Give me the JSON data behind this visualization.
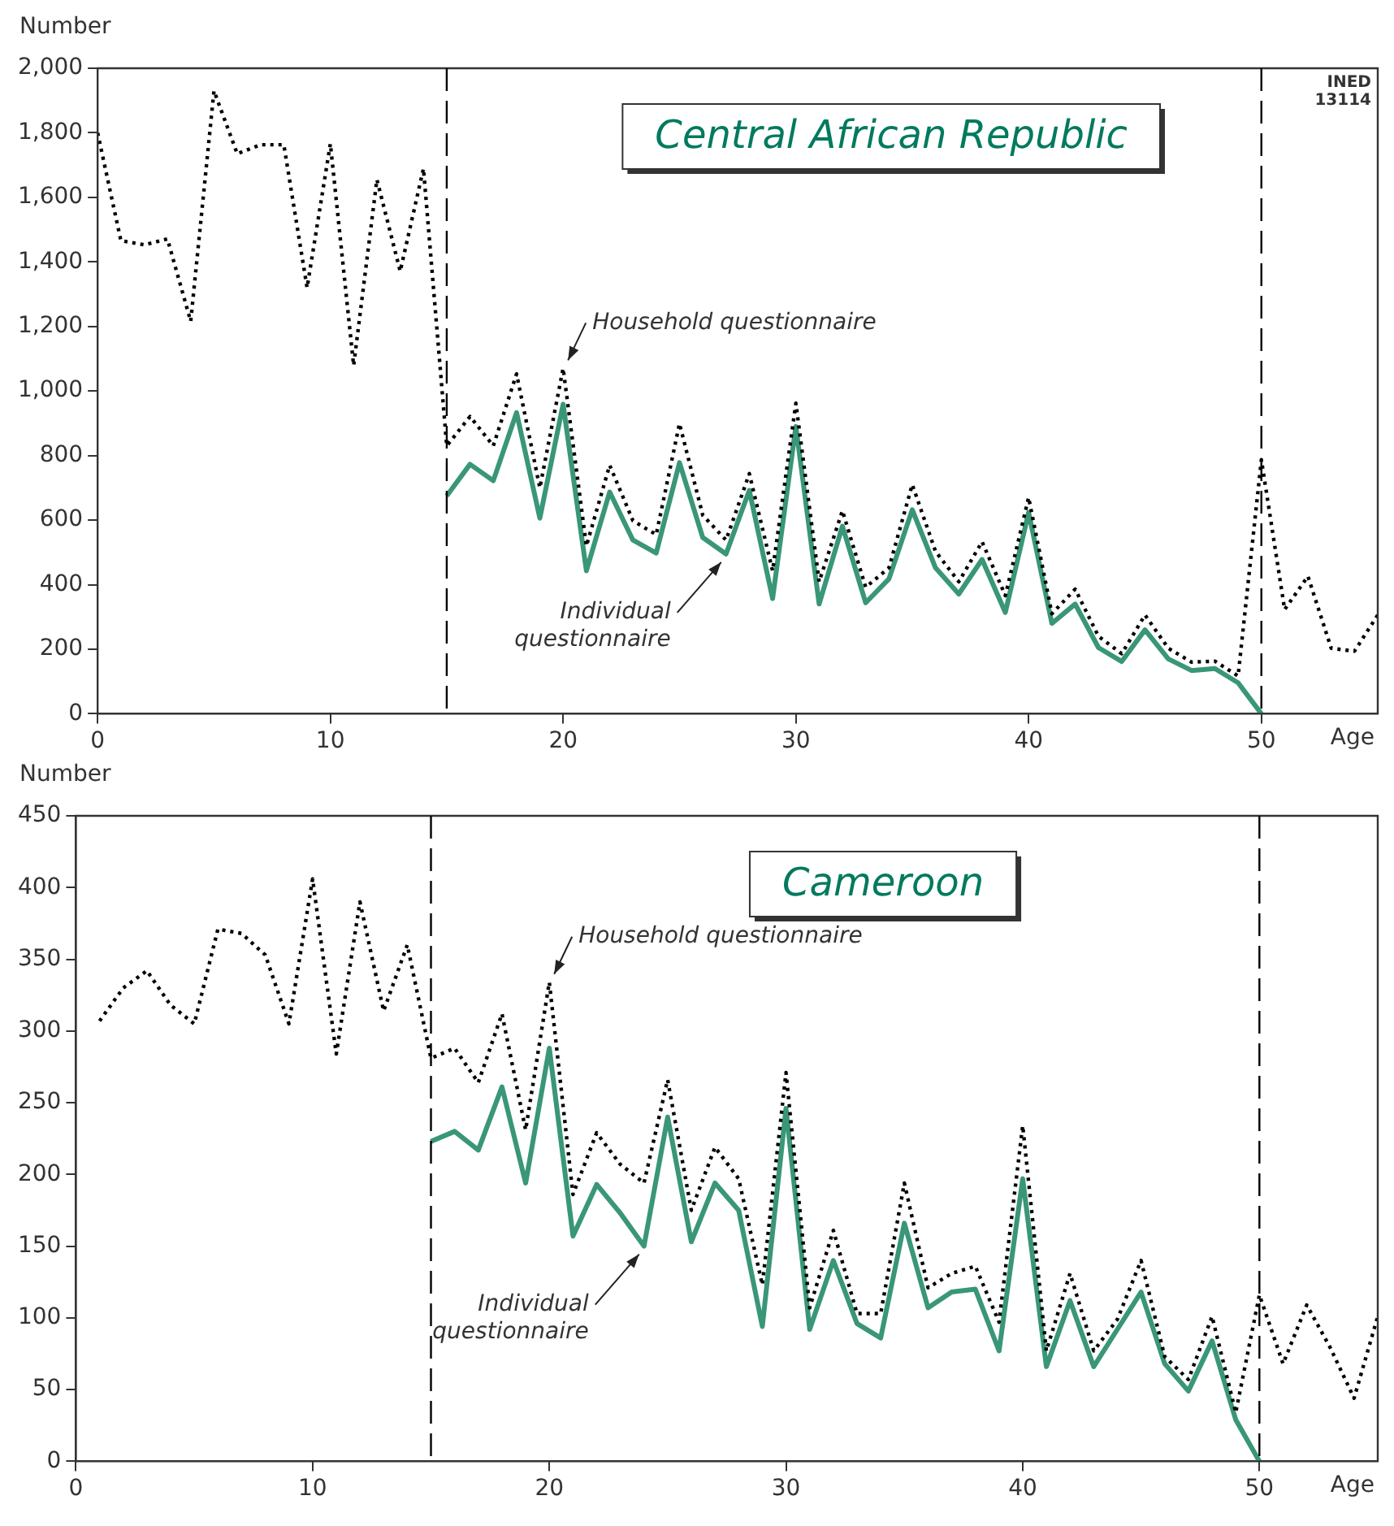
{
  "chart_data": [
    {
      "type": "line",
      "title": "Central African Republic",
      "xlabel": "Age",
      "ylabel": "Number",
      "xlim": [
        0,
        55
      ],
      "xticks": [
        0,
        10,
        20,
        30,
        40,
        50
      ],
      "ylim": [
        0,
        2000
      ],
      "yticks": [
        0,
        200,
        400,
        600,
        800,
        {
          "value": 1000,
          "label": "1,000"
        },
        {
          "value": 1200,
          "label": "1,200"
        },
        {
          "value": 1400,
          "label": "1,400"
        },
        {
          "value": 1600,
          "label": "1,600"
        },
        {
          "value": 1800,
          "label": "1,800"
        },
        {
          "value": 2000,
          "label": "2,000"
        }
      ],
      "grid": false,
      "legend": false,
      "marker": "none",
      "series": [
        {
          "color": "#000000",
          "line_style": "dotted",
          "x": [
            0,
            1,
            2,
            3,
            4,
            5,
            6,
            7,
            8,
            9,
            10,
            11,
            12,
            13,
            14,
            15,
            16,
            17,
            18,
            19,
            20,
            21,
            22,
            23,
            24,
            25,
            26,
            27,
            28,
            29,
            30,
            31,
            32,
            33,
            34,
            35,
            36,
            37,
            38,
            39,
            40,
            41,
            42,
            43,
            44,
            45,
            46,
            47,
            48,
            49,
            50,
            51,
            52,
            53,
            54,
            55
          ],
          "values": [
            1800,
            1466,
            1453,
            1471,
            1216,
            1930,
            1735,
            1763,
            1763,
            1320,
            1766,
            1079,
            1655,
            1371,
            1689,
            830,
            921,
            830,
            1053,
            700,
            1070,
            520,
            770,
            598,
            555,
            899,
            615,
            538,
            744,
            443,
            962,
            409,
            629,
            392,
            452,
            710,
            503,
            409,
            533,
            366,
            670,
            310,
            386,
            240,
            186,
            306,
            203,
            160,
            163,
            117,
            787,
            323,
            426,
            203,
            194,
            306
          ]
        },
        {
          "color": "#3a9679",
          "line_style": "solid",
          "x": [
            15,
            16,
            17,
            18,
            19,
            20,
            21,
            22,
            23,
            24,
            25,
            26,
            27,
            28,
            29,
            30,
            31,
            32,
            33,
            34,
            35,
            36,
            37,
            38,
            39,
            40,
            41,
            42,
            43,
            44,
            45,
            46,
            47,
            48,
            49,
            50
          ],
          "values": [
            675,
            773,
            722,
            933,
            606,
            959,
            443,
            687,
            538,
            498,
            778,
            546,
            495,
            692,
            357,
            890,
            340,
            581,
            344,
            418,
            632,
            452,
            371,
            478,
            314,
            624,
            280,
            340,
            205,
            162,
            260,
            170,
            134,
            140,
            96,
            0
          ]
        }
      ],
      "ref_lines": [
        {
          "axis": "x",
          "value": 15,
          "line_style": "dashed",
          "color": "#000000"
        },
        {
          "axis": "x",
          "value": 50,
          "line_style": "dashed",
          "color": "#000000"
        }
      ],
      "annotations": [
        {
          "text": "Household questionnaire",
          "x": 20,
          "y": 1070
        },
        {
          "text": "Individual questionnaire",
          "x": 27,
          "y": 495
        },
        "INED 13114"
      ]
    },
    {
      "type": "line",
      "title": "Cameroon",
      "xlabel": "Age",
      "ylabel": "Number",
      "xlim": [
        0,
        55
      ],
      "xticks": [
        0,
        10,
        20,
        30,
        40,
        50
      ],
      "ylim": [
        0,
        450
      ],
      "yticks": [
        0,
        50,
        100,
        150,
        200,
        250,
        300,
        350,
        400,
        450
      ],
      "grid": false,
      "legend": false,
      "marker": "none",
      "series": [
        {
          "color": "#000000",
          "line_style": "dotted",
          "x": [
            1,
            2,
            3,
            4,
            5,
            6,
            7,
            8,
            9,
            10,
            11,
            12,
            13,
            14,
            15,
            16,
            17,
            18,
            19,
            20,
            21,
            22,
            23,
            24,
            25,
            26,
            27,
            28,
            29,
            30,
            31,
            32,
            33,
            34,
            35,
            36,
            37,
            38,
            39,
            40,
            41,
            42,
            43,
            44,
            45,
            46,
            47,
            48,
            49,
            50,
            51,
            52,
            53,
            54,
            55
          ],
          "values": [
            307,
            330,
            342,
            318,
            305,
            371,
            368,
            353,
            305,
            406,
            284,
            390,
            314,
            360,
            281,
            288,
            264,
            312,
            231,
            334,
            186,
            229,
            207,
            194,
            266,
            175,
            219,
            197,
            123,
            271,
            107,
            161,
            103,
            103,
            194,
            121,
            131,
            136,
            97,
            234,
            77,
            131,
            77,
            99,
            140,
            73,
            57,
            101,
            34,
            116,
            68,
            109,
            79,
            44,
            101
          ]
        },
        {
          "color": "#3a9679",
          "line_style": "solid",
          "x": [
            15,
            16,
            17,
            18,
            19,
            20,
            21,
            22,
            23,
            24,
            25,
            26,
            27,
            28,
            29,
            30,
            31,
            32,
            33,
            34,
            35,
            36,
            37,
            38,
            39,
            40,
            41,
            42,
            43,
            44,
            45,
            46,
            47,
            48,
            49,
            50
          ],
          "values": [
            223,
            230,
            217,
            261,
            194,
            288,
            157,
            193,
            173,
            150,
            240,
            153,
            194,
            175,
            94,
            246,
            92,
            140,
            96,
            86,
            166,
            107,
            118,
            120,
            77,
            197,
            66,
            112,
            66,
            92,
            118,
            68,
            49,
            84,
            29,
            0
          ]
        }
      ],
      "ref_lines": [
        {
          "axis": "x",
          "value": 15,
          "line_style": "dashed",
          "color": "#000000"
        },
        {
          "axis": "x",
          "value": 50,
          "line_style": "dashed",
          "color": "#000000"
        }
      ],
      "annotations": [
        {
          "text": "Household questionnaire",
          "x": 20,
          "y": 334
        },
        {
          "text": "Individual questionnaire",
          "x": 24,
          "y": 150
        }
      ]
    }
  ]
}
